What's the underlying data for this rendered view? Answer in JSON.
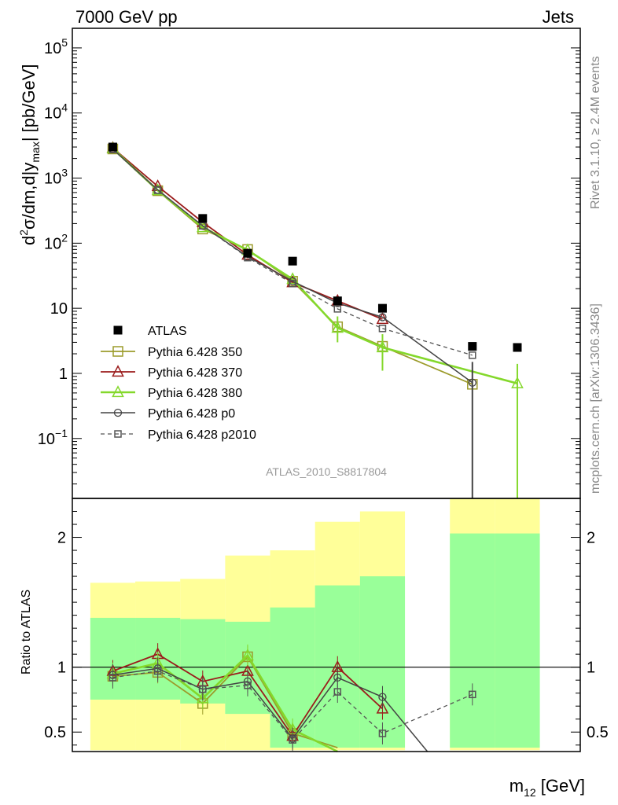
{
  "header": {
    "left": "7000 GeV pp",
    "right": "Jets"
  },
  "side": {
    "rivet": "Rivet 3.1.10, ≥ 2.4M events",
    "mcplots": "mcplots.cern.ch [arXiv:1306.3436]"
  },
  "watermark": "ATLAS_2010_S8817804",
  "chart_data": [
    {
      "type": "scatter",
      "panel": "main",
      "ylabel": "d²σ/dm,d|y_max| [pb/GeV]",
      "yscale": "log",
      "ylim": [
        0.012,
        200000
      ],
      "yticks": [
        "10^-1",
        "1",
        "10",
        "10^2",
        "10^3",
        "10^4",
        "10^5"
      ],
      "x": [
        1,
        2,
        3,
        4,
        5,
        6,
        7,
        8,
        9,
        10
      ],
      "xlim": [
        0.1,
        11.4
      ],
      "series": [
        {
          "name": "ATLAS",
          "color": "#000000",
          "values": [
            3000,
            null,
            240,
            70,
            53,
            13,
            10,
            null,
            2.6,
            2.5
          ]
        },
        {
          "name": "Pythia 6.428 350",
          "color": "#9c9b2b",
          "values": [
            2800,
            640,
            165,
            80,
            26,
            5.2,
            2.6,
            null,
            0.68,
            null
          ]
        },
        {
          "name": "Pythia 6.428 370",
          "color": "#9b1c1c",
          "values": [
            2900,
            750,
            210,
            66,
            25,
            13,
            6.8,
            null,
            null,
            null
          ]
        },
        {
          "name": "Pythia 6.428 380",
          "color": "#84d82b",
          "values": [
            2850,
            650,
            175,
            78,
            28,
            5.0,
            2.5,
            null,
            null,
            0.7
          ]
        },
        {
          "name": "Pythia 6.428 p0",
          "color": "#444444",
          "values": [
            2800,
            660,
            185,
            62,
            26,
            12,
            7.3,
            null,
            0.72,
            null
          ]
        },
        {
          "name": "Pythia 6.428 p2010",
          "color": "#555555",
          "values": [
            2750,
            650,
            185,
            60,
            24,
            9.8,
            4.9,
            null,
            1.9,
            null
          ]
        }
      ]
    },
    {
      "type": "line",
      "panel": "ratio",
      "ylabel": "Ratio to ATLAS",
      "ylim": [
        0.35,
        2.3
      ],
      "yticks": [
        "0.5",
        "1",
        "2"
      ],
      "xlabel": "m₁₂ [GeV]",
      "x": [
        1,
        2,
        3,
        4,
        5,
        6,
        7,
        8,
        9,
        10
      ],
      "bands": {
        "green": [
          [
            0.75,
            1.38
          ],
          [
            0.75,
            1.38
          ],
          [
            0.72,
            1.37
          ],
          [
            0.64,
            1.35
          ],
          [
            0.38,
            1.46
          ],
          [
            0.38,
            1.63
          ],
          [
            0.38,
            1.7
          ],
          null,
          [
            0.38,
            2.03
          ],
          [
            0.38,
            2.03
          ]
        ],
        "yellow": [
          [
            0.36,
            1.65
          ],
          [
            0.36,
            1.66
          ],
          [
            0.36,
            1.68
          ],
          [
            0.36,
            1.86
          ],
          [
            0.36,
            1.9
          ],
          [
            0.36,
            2.12
          ],
          [
            0.36,
            2.2
          ],
          null,
          [
            0.36,
            2.3
          ],
          [
            0.36,
            2.3
          ]
        ]
      },
      "series": [
        {
          "name": "Pythia 6.428 350",
          "values": [
            0.93,
            0.96,
            0.72,
            1.08,
            0.49,
            0.38,
            null,
            null,
            null,
            null
          ]
        },
        {
          "name": "Pythia 6.428 370",
          "values": [
            0.97,
            1.1,
            0.89,
            0.97,
            0.47,
            1.0,
            0.68,
            null,
            null,
            null
          ]
        },
        {
          "name": "Pythia 6.428 380",
          "values": [
            0.95,
            1.03,
            0.76,
            1.09,
            0.52,
            0.33,
            null,
            null,
            null,
            null
          ]
        },
        {
          "name": "Pythia 6.428 p0",
          "values": [
            0.94,
            0.99,
            0.83,
            0.89,
            0.45,
            0.92,
            0.77,
            0.35,
            null,
            null
          ]
        },
        {
          "name": "Pythia 6.428 p2010",
          "values": [
            0.92,
            0.97,
            0.83,
            0.86,
            0.44,
            0.81,
            0.49,
            null,
            0.79,
            null
          ]
        }
      ]
    }
  ]
}
